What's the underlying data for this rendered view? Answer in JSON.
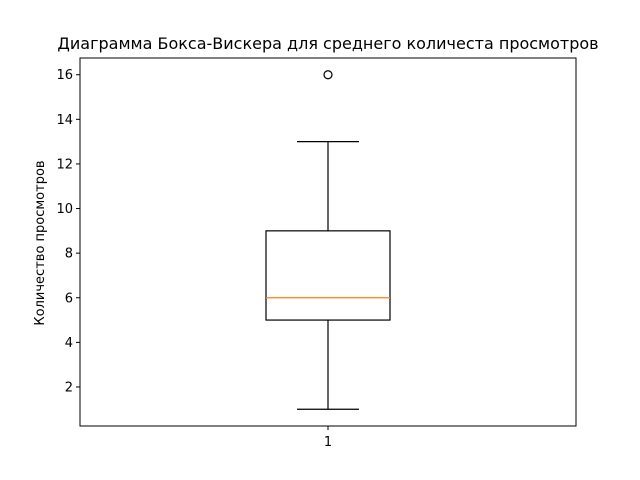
{
  "chart_data": {
    "type": "boxplot",
    "title": "Диаграмма Бокса-Вискера для среднего количеста просмотров",
    "xlabel": "",
    "ylabel": "Количество просмотров",
    "categories": [
      "1"
    ],
    "boxes": [
      {
        "category": "1",
        "whisker_low": 1,
        "q1": 5,
        "median": 6,
        "q3": 9,
        "whisker_high": 13,
        "outliers": [
          16
        ]
      }
    ],
    "ylim": [
      0.25,
      16.75
    ],
    "yticks": [
      2,
      4,
      6,
      8,
      10,
      12,
      14,
      16
    ],
    "grid": false,
    "colors": {
      "box": "#000000",
      "median": "#ff7f0e",
      "outlier": "#000000"
    }
  }
}
